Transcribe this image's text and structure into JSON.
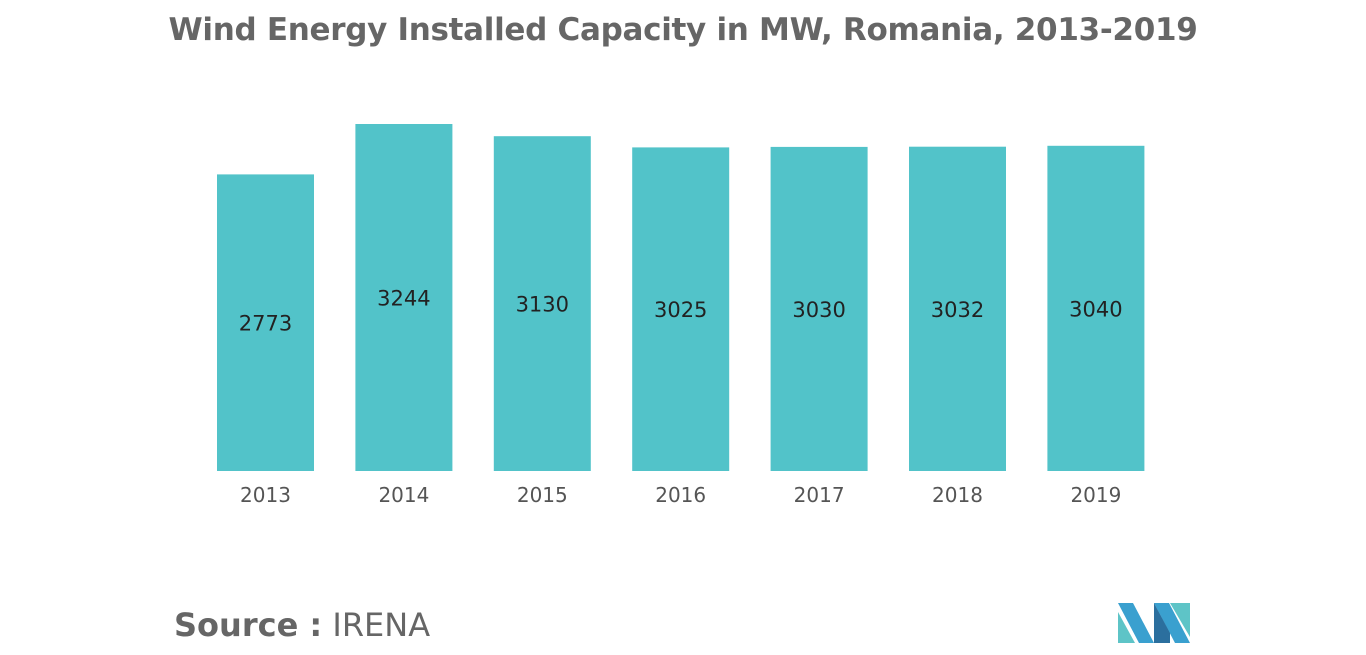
{
  "chart_data": {
    "type": "bar",
    "title": "Wind Energy Installed Capacity in MW, Romania, 2013-2019",
    "xlabel": "",
    "ylabel": "",
    "categories": [
      "2013",
      "2014",
      "2015",
      "2016",
      "2017",
      "2018",
      "2019"
    ],
    "values": [
      2773,
      3244,
      3130,
      3025,
      3030,
      3032,
      3040
    ],
    "ylim": [
      0,
      3300
    ],
    "grid": false,
    "legend": "none",
    "bar_color": "#52c3c9"
  },
  "source": {
    "label": "Source :",
    "value": "IRENA"
  },
  "logo": {
    "icon": "mordor-intelligence-logo-icon",
    "colors": [
      "#3aa0cf",
      "#5ec4c7",
      "#2b6f9e"
    ]
  }
}
